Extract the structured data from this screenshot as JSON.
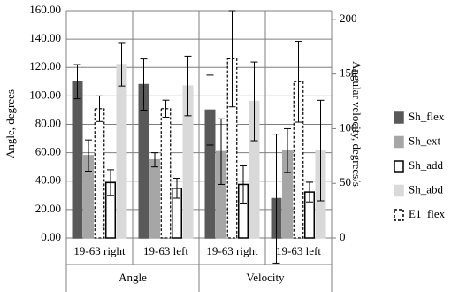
{
  "chart_data": {
    "type": "bar",
    "ylabel": "Angle, degrees",
    "y2label": "Angular velocity, degrees/s",
    "groups": [
      {
        "label": "Angle",
        "axis": "y",
        "categories": [
          "19-63 right",
          "19-63 left"
        ]
      },
      {
        "label": "Velocity",
        "axis": "y2",
        "categories": [
          "19-63 right",
          "19-63 left"
        ]
      }
    ],
    "series": [
      {
        "name": "Sh_flex",
        "color": "#595959",
        "border": "#595959",
        "dashed": false,
        "values": [
          110,
          108,
          117,
          36
        ],
        "errors": [
          12,
          18,
          32,
          59
        ]
      },
      {
        "name": "Sh_ext",
        "color": "#a6a6a6",
        "border": "#a6a6a6",
        "dashed": false,
        "values": [
          58,
          55,
          79,
          80
        ],
        "errors": [
          11,
          5,
          30,
          20
        ]
      },
      {
        "name": "Sh_add",
        "color": "#ffffff",
        "border": "#000000",
        "dashed": false,
        "values": [
          39,
          35,
          49,
          42
        ],
        "errors": [
          9,
          7,
          17,
          9
        ]
      },
      {
        "name": "Sh_abd",
        "color": "#d9d9d9",
        "border": "#d9d9d9",
        "dashed": false,
        "values": [
          122,
          107,
          125,
          80
        ],
        "errors": [
          15,
          21,
          36,
          46
        ]
      },
      {
        "name": "E1_flex",
        "color": "#ffffff",
        "border": "#000000",
        "dashed": true,
        "values": [
          91,
          91,
          164,
          143
        ],
        "errors": [
          9,
          6,
          44,
          37
        ]
      }
    ],
    "ylim": [
      0,
      160
    ],
    "yticks": [
      {
        "value": 0,
        "label": "0.00"
      },
      {
        "value": 20,
        "label": "20.00"
      },
      {
        "value": 40,
        "label": "40.00"
      },
      {
        "value": 60,
        "label": "60.00"
      },
      {
        "value": 80,
        "label": "80.00"
      },
      {
        "value": 100,
        "label": "100.00"
      },
      {
        "value": 120,
        "label": "120.00"
      },
      {
        "value": 140,
        "label": "140.00"
      },
      {
        "value": 160,
        "label": "160.00"
      }
    ],
    "y2lim": [
      0,
      208
    ],
    "y2ticks": [
      0,
      50,
      100,
      150,
      200
    ],
    "grid": true
  }
}
